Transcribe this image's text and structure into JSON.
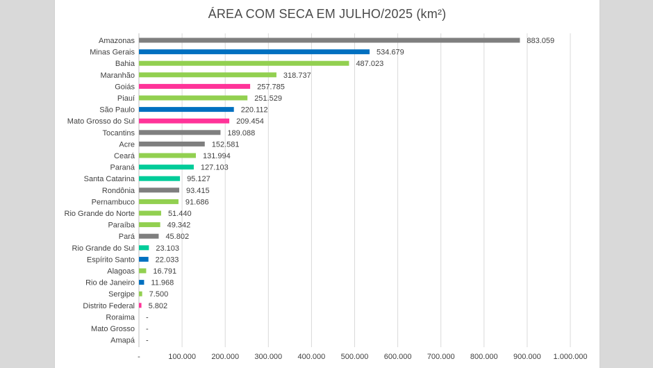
{
  "chart_data": {
    "type": "bar",
    "orientation": "horizontal",
    "title": "ÁREA COM SECA EM JULHO/2025 (km²)",
    "xlabel": "",
    "ylabel": "",
    "xlim": [
      0,
      1000000
    ],
    "grid": true,
    "legend": "none",
    "x_ticks": [
      0,
      100000,
      200000,
      300000,
      400000,
      500000,
      600000,
      700000,
      800000,
      900000,
      1000000
    ],
    "x_tick_labels": [
      "-",
      "100.000",
      "200.000",
      "300.000",
      "400.000",
      "500.000",
      "600.000",
      "700.000",
      "800.000",
      "900.000",
      "1.000.000"
    ],
    "categories": [
      "Amazonas",
      "Minas Gerais",
      "Bahia",
      "Maranhão",
      "Goiás",
      "Piauí",
      "São Paulo",
      "Mato Grosso do Sul",
      "Tocantins",
      "Acre",
      "Ceará",
      "Paraná",
      "Santa Catarina",
      "Rondônia",
      "Pernambuco",
      "Rio Grande do Norte",
      "Paraíba",
      "Pará",
      "Rio Grande do Sul",
      "Espírito Santo",
      "Alagoas",
      "Rio de Janeiro",
      "Sergipe",
      "Distrito Federal",
      "Roraima",
      "Mato Grosso",
      "Amapá"
    ],
    "values": [
      883059,
      534679,
      487023,
      318737,
      257785,
      251529,
      220112,
      209454,
      189088,
      152581,
      131994,
      127103,
      95127,
      93415,
      91686,
      51440,
      49342,
      45802,
      23103,
      22033,
      16791,
      11968,
      7500,
      5802,
      0,
      0,
      0
    ],
    "value_labels": [
      "883.059",
      "534.679",
      "487.023",
      "318.737",
      "257.785",
      "251.529",
      "220.112",
      "209.454",
      "189.088",
      "152.581",
      "131.994",
      "127.103",
      "95.127",
      "93.415",
      "91.686",
      "51.440",
      "49.342",
      "45.802",
      "23.103",
      "22.033",
      "16.791",
      "11.968",
      "7.500",
      "5.802",
      "-",
      "-",
      "-"
    ],
    "bar_colors": [
      "#7f7f7f",
      "#0070c0",
      "#92d050",
      "#92d050",
      "#ff3399",
      "#92d050",
      "#0070c0",
      "#ff3399",
      "#7f7f7f",
      "#7f7f7f",
      "#92d050",
      "#00cc99",
      "#00cc99",
      "#7f7f7f",
      "#92d050",
      "#92d050",
      "#92d050",
      "#7f7f7f",
      "#00cc99",
      "#0070c0",
      "#92d050",
      "#0070c0",
      "#92d050",
      "#ff3399",
      "#7f7f7f",
      "#ff3399",
      "#7f7f7f"
    ]
  }
}
